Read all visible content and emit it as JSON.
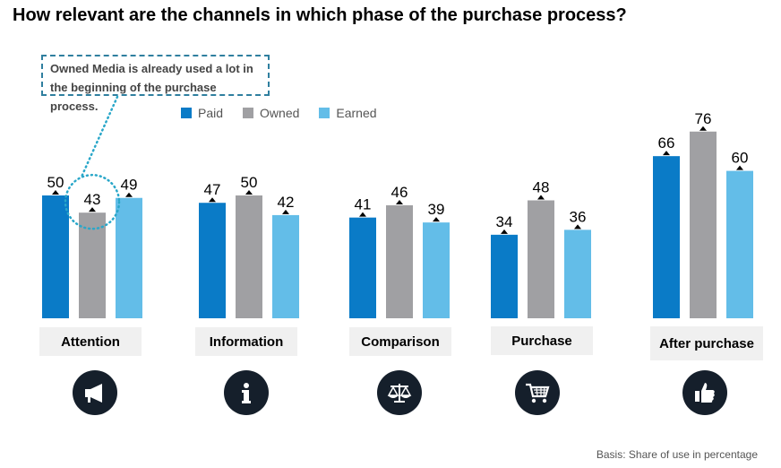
{
  "chart_data": {
    "type": "bar",
    "title": "How relevant are the channels in which phase of the purchase process?",
    "categories": [
      "Attention",
      "Information",
      "Comparison",
      "Purchase",
      "After purchase"
    ],
    "series": [
      {
        "name": "Paid",
        "values": [
          50,
          47,
          41,
          34,
          66
        ]
      },
      {
        "name": "Owned",
        "values": [
          43,
          50,
          46,
          48,
          76
        ]
      },
      {
        "name": "Earned",
        "values": [
          49,
          42,
          39,
          36,
          60
        ]
      }
    ],
    "ylim": [
      0,
      80
    ],
    "xlabel": "",
    "ylabel": "",
    "grid": false,
    "legend": "top",
    "annotation": "Owned Media is already used a lot in the beginning of the purchase process.",
    "footnote": "Basis: Share of use in percentage",
    "colors": {
      "Paid": "#0a7bc7",
      "Owned": "#a0a0a3",
      "Earned": "#63bde8"
    },
    "icons": [
      "megaphone-icon",
      "info-icon",
      "scales-icon",
      "shopping-cart-icon",
      "thumbs-up-icon"
    ]
  }
}
